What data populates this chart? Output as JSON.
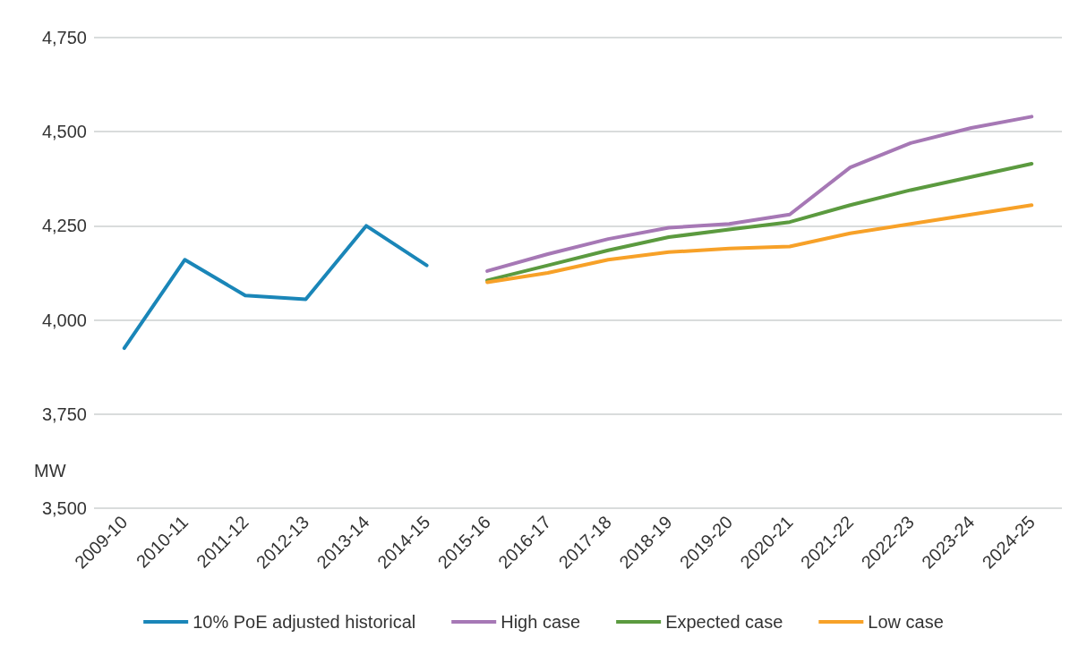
{
  "chart_data": {
    "type": "line",
    "ylabel": "MW",
    "categories": [
      "2009-10",
      "2010-11",
      "2011-12",
      "2012-13",
      "2013-14",
      "2014-15",
      "2015-16",
      "2016-17",
      "2017-18",
      "2018-19",
      "2019-20",
      "2020-21",
      "2021-22",
      "2022-23",
      "2023-24",
      "2024-25"
    ],
    "series": [
      {
        "name": "10% PoE adjusted historical",
        "color": "#1a86b8",
        "values": [
          3925,
          4160,
          4065,
          4055,
          4250,
          4145,
          null,
          null,
          null,
          null,
          null,
          null,
          null,
          null,
          null,
          null
        ]
      },
      {
        "name": "High case",
        "color": "#a678b5",
        "values": [
          null,
          null,
          null,
          null,
          null,
          null,
          4130,
          4175,
          4215,
          4245,
          4255,
          4280,
          4405,
          4470,
          4510,
          4540
        ]
      },
      {
        "name": "Expected case",
        "color": "#5b9a3f",
        "values": [
          null,
          null,
          null,
          null,
          null,
          null,
          4105,
          4145,
          4185,
          4220,
          4240,
          4260,
          4305,
          4345,
          4380,
          4415
        ]
      },
      {
        "name": "Low case",
        "color": "#f7a128",
        "values": [
          null,
          null,
          null,
          null,
          null,
          null,
          4100,
          4125,
          4160,
          4180,
          4190,
          4195,
          4230,
          4255,
          4280,
          4305
        ]
      }
    ],
    "ylim": [
      3500,
      4750
    ],
    "yticks": [
      {
        "value": 3500,
        "label": "3,500"
      },
      {
        "value": 3750,
        "label": "3,750"
      },
      {
        "value": 4000,
        "label": "4,000"
      },
      {
        "value": 4250,
        "label": "4,250"
      },
      {
        "value": 4500,
        "label": "4,500"
      },
      {
        "value": 4750,
        "label": "4,750"
      }
    ],
    "grid": "y",
    "legend": "bottom",
    "marker": "none",
    "line_style": "solid"
  }
}
